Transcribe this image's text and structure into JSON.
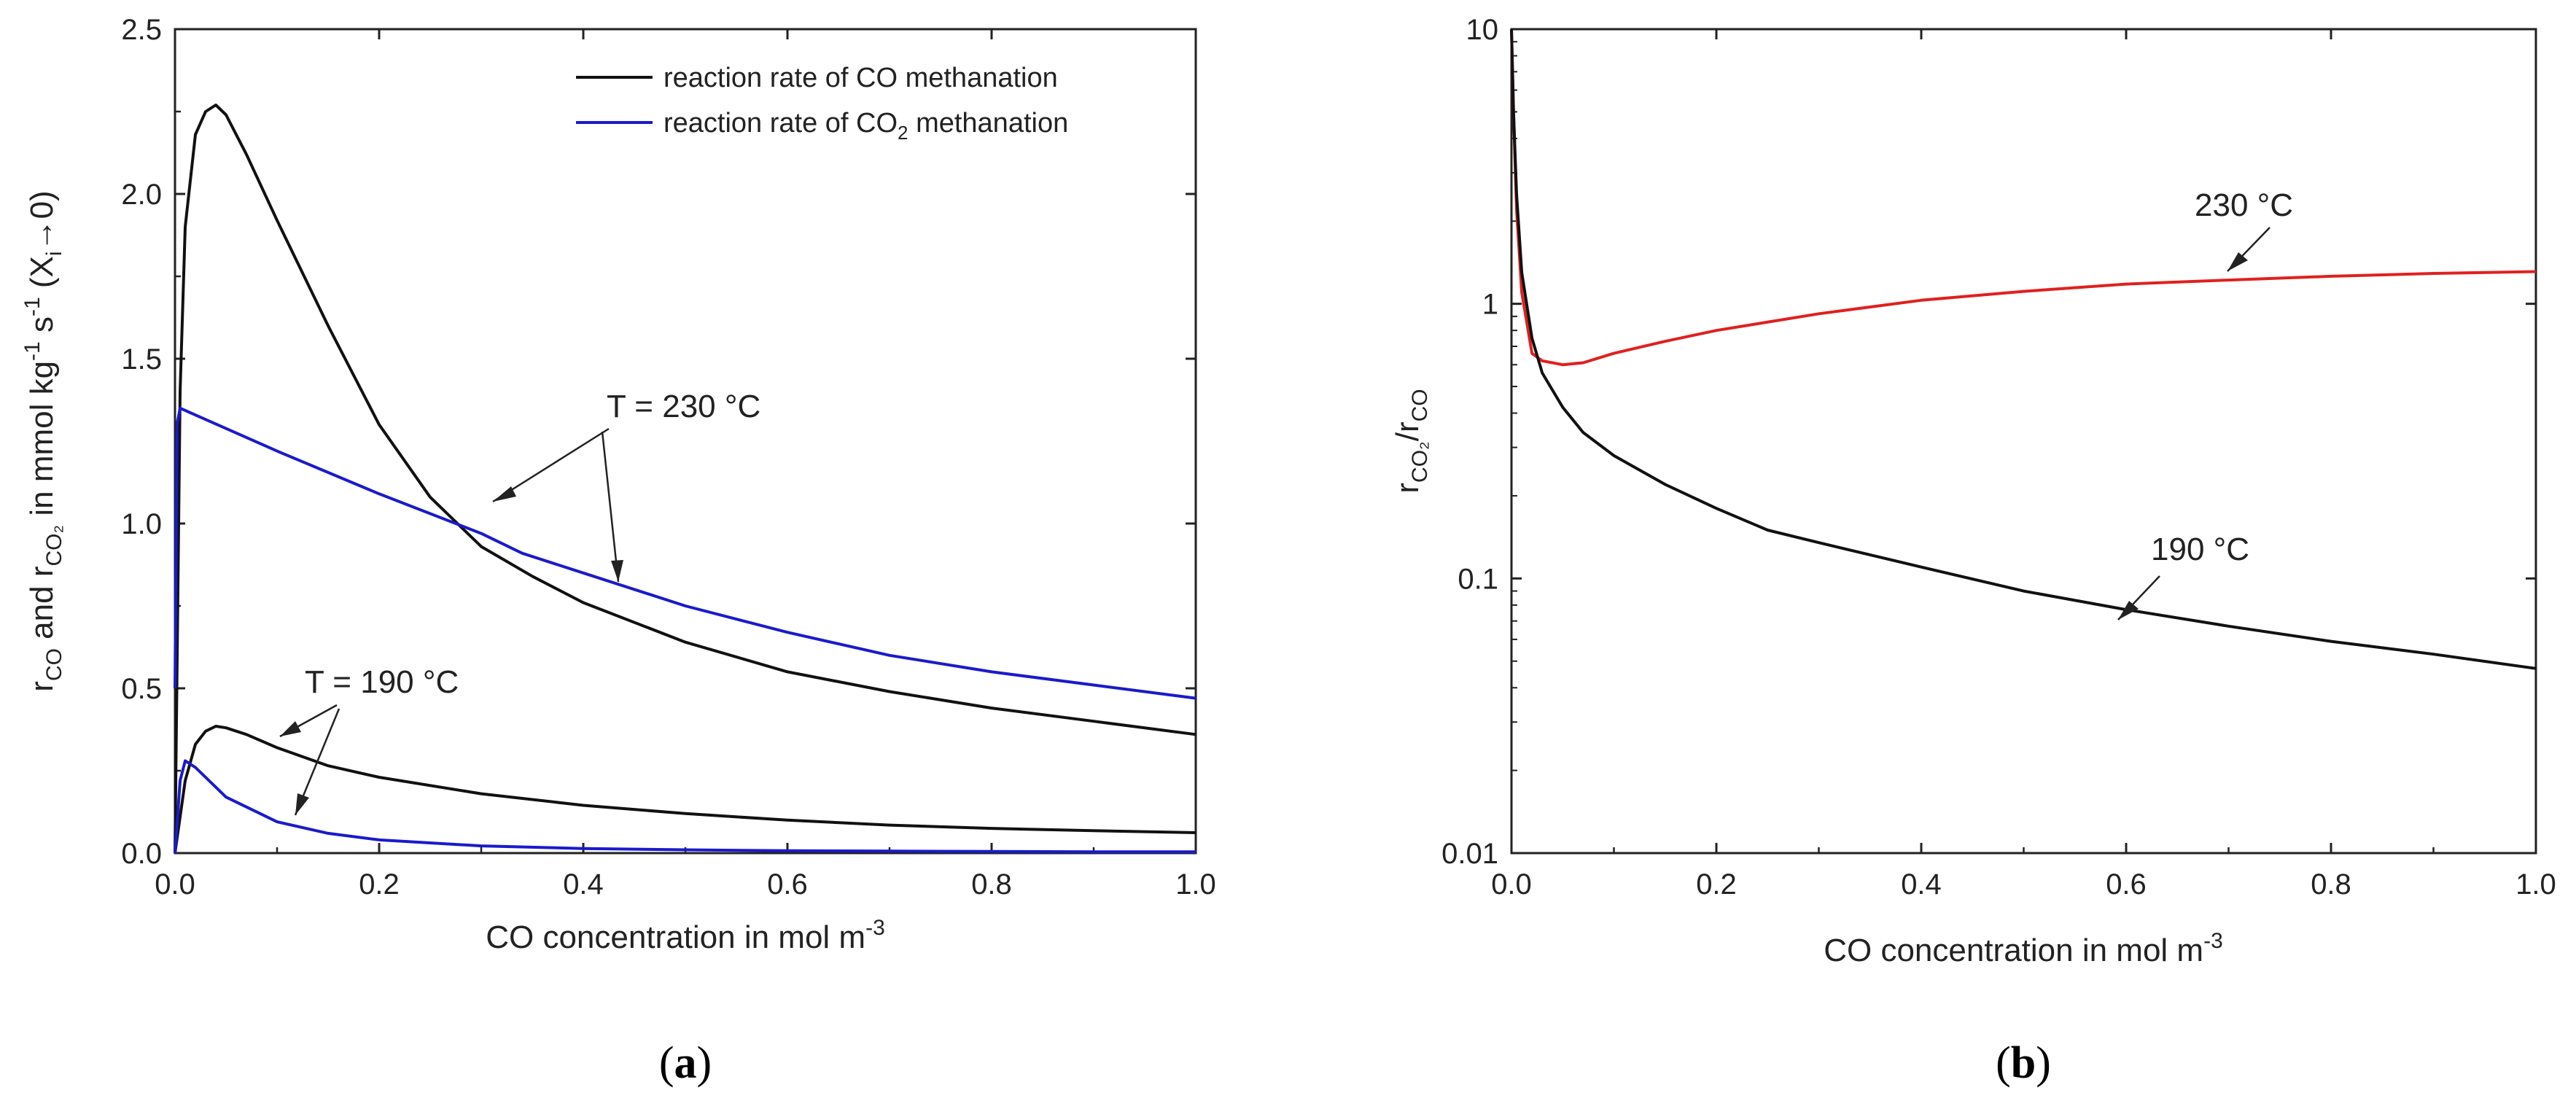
{
  "chart_data": [
    {
      "type": "line",
      "panel_label": "a",
      "xlabel_main": "CO concentration in mol m",
      "xlabel_exp": "-3",
      "ylabel_parts": {
        "r1": "r",
        "s1": "CO",
        "and": " and r",
        "s2": "CO₂",
        "unit": " in mmol kg",
        "e1": "-1",
        "sp": " s",
        "e2": "-1",
        "paren_open": " (X",
        "sub_i": "i",
        "arrow": "→0)"
      },
      "xlim": [
        0,
        1.0
      ],
      "ylim": [
        0,
        2.5
      ],
      "xticks": [
        "0.0",
        "0.2",
        "0.4",
        "0.6",
        "0.8",
        "1.0"
      ],
      "yticks": [
        "0.0",
        "0.5",
        "1.0",
        "1.5",
        "2.0",
        "2.5"
      ],
      "legend": {
        "position": "top-right",
        "entries": [
          {
            "text": "reaction rate of CO methanation",
            "color": "#111111"
          },
          {
            "text_pre": "reaction rate of CO",
            "text_sub": "2",
            "text_post": " methanation",
            "color": "#1a1acc"
          }
        ]
      },
      "annotations": [
        "T = 230 °C",
        "T = 190 °C"
      ],
      "series": [
        {
          "name": "CO methanation 230 °C",
          "color": "#111111",
          "x": [
            0,
            0.005,
            0.01,
            0.02,
            0.03,
            0.04,
            0.05,
            0.07,
            0.1,
            0.15,
            0.2,
            0.25,
            0.3,
            0.35,
            0.4,
            0.5,
            0.6,
            0.7,
            0.8,
            0.9,
            1.0
          ],
          "y": [
            0,
            1.4,
            1.9,
            2.18,
            2.25,
            2.27,
            2.24,
            2.12,
            1.92,
            1.6,
            1.3,
            1.08,
            0.93,
            0.84,
            0.76,
            0.64,
            0.55,
            0.49,
            0.44,
            0.4,
            0.36
          ]
        },
        {
          "name": "CO2 methanation 230 °C",
          "color": "#1a1acc",
          "x": [
            0,
            0.002,
            0.005,
            0.1,
            0.2,
            0.3,
            0.34,
            0.4,
            0.5,
            0.6,
            0.7,
            0.8,
            0.9,
            1.0
          ],
          "y": [
            0.5,
            1.3,
            1.35,
            1.22,
            1.09,
            0.97,
            0.91,
            0.85,
            0.75,
            0.67,
            0.6,
            0.55,
            0.51,
            0.47
          ]
        },
        {
          "name": "CO methanation 190 °C",
          "color": "#111111",
          "x": [
            0,
            0.01,
            0.02,
            0.03,
            0.04,
            0.05,
            0.07,
            0.1,
            0.15,
            0.2,
            0.3,
            0.4,
            0.5,
            0.6,
            0.7,
            0.8,
            0.9,
            1.0
          ],
          "y": [
            0,
            0.22,
            0.33,
            0.37,
            0.385,
            0.38,
            0.36,
            0.32,
            0.265,
            0.23,
            0.18,
            0.145,
            0.12,
            0.1,
            0.085,
            0.075,
            0.068,
            0.062
          ]
        },
        {
          "name": "CO2 methanation 190 °C",
          "color": "#1a1acc",
          "x": [
            0,
            0.005,
            0.01,
            0.02,
            0.05,
            0.1,
            0.15,
            0.2,
            0.3,
            0.4,
            0.5,
            0.6,
            0.7,
            0.8,
            0.9,
            1.0
          ],
          "y": [
            0.0,
            0.22,
            0.28,
            0.26,
            0.17,
            0.095,
            0.06,
            0.04,
            0.022,
            0.014,
            0.01,
            0.007,
            0.006,
            0.005,
            0.004,
            0.004
          ]
        }
      ]
    },
    {
      "type": "line",
      "panel_label": "b",
      "yscale": "log",
      "xlabel_main": "CO concentration in mol m",
      "xlabel_exp": "-3",
      "ylabel_parts": {
        "r1": "r",
        "s1": "CO₂",
        "slash": "/r",
        "s2": "CO"
      },
      "xlim": [
        0,
        1.0
      ],
      "ylim": [
        0.01,
        10
      ],
      "xticks": [
        "0.0",
        "0.2",
        "0.4",
        "0.6",
        "0.8",
        "1.0"
      ],
      "yticks": [
        "0.01",
        "0.1",
        "1",
        "10"
      ],
      "annotations": [
        "230 °C",
        "190 °C"
      ],
      "series": [
        {
          "name": "230 °C",
          "color": "#e02020",
          "x": [
            0.0,
            0.002,
            0.005,
            0.01,
            0.02,
            0.03,
            0.05,
            0.07,
            0.1,
            0.15,
            0.2,
            0.3,
            0.4,
            0.5,
            0.6,
            0.7,
            0.8,
            0.9,
            1.0
          ],
          "y": [
            10,
            5,
            2.2,
            1.1,
            0.66,
            0.62,
            0.6,
            0.61,
            0.66,
            0.73,
            0.8,
            0.92,
            1.03,
            1.11,
            1.18,
            1.22,
            1.26,
            1.29,
            1.31
          ]
        },
        {
          "name": "190 °C",
          "color": "#111111",
          "x": [
            0.0,
            0.002,
            0.005,
            0.01,
            0.02,
            0.03,
            0.05,
            0.07,
            0.1,
            0.15,
            0.2,
            0.25,
            0.3,
            0.4,
            0.5,
            0.6,
            0.7,
            0.8,
            0.9,
            1.0
          ],
          "y": [
            10,
            5,
            2.5,
            1.3,
            0.75,
            0.56,
            0.42,
            0.34,
            0.28,
            0.22,
            0.18,
            0.15,
            0.135,
            0.11,
            0.09,
            0.077,
            0.067,
            0.059,
            0.053,
            0.047
          ]
        }
      ]
    }
  ]
}
